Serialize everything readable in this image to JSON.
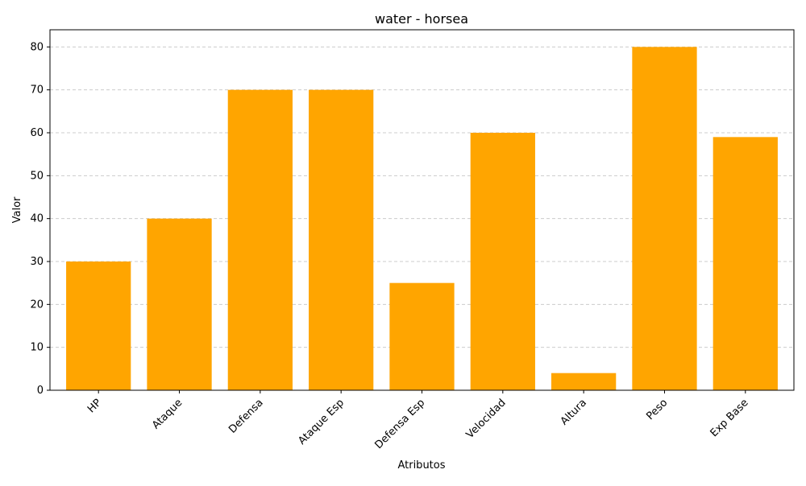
{
  "chart_data": {
    "type": "bar",
    "title": "water - horsea",
    "xlabel": "Atributos",
    "ylabel": "Valor",
    "categories": [
      "HP",
      "Ataque",
      "Defensa",
      "Ataque Esp",
      "Defensa Esp",
      "Velocidad",
      "Altura",
      "Peso",
      "Exp Base"
    ],
    "values": [
      30,
      40,
      70,
      70,
      25,
      60,
      4,
      80,
      59
    ],
    "ylim": [
      0,
      84
    ],
    "yticks": [
      0,
      10,
      20,
      30,
      40,
      50,
      60,
      70,
      80
    ],
    "grid": "y-dashed",
    "bar_color": "#ffa500",
    "grid_color": "#cccccc"
  }
}
